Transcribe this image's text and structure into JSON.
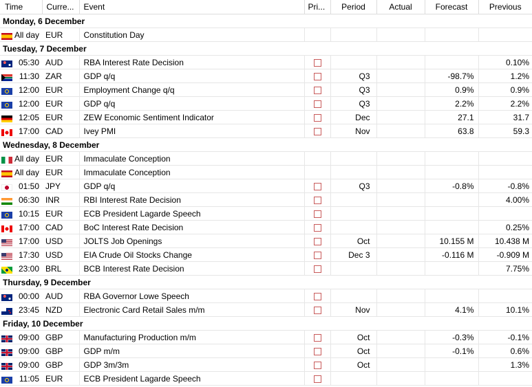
{
  "columns": {
    "time": "Time",
    "currency": "Curre...",
    "event": "Event",
    "priority": "Pri...",
    "period": "Period",
    "actual": "Actual",
    "forecast": "Forecast",
    "previous": "Previous"
  },
  "days": [
    {
      "label": "Monday, 6 December",
      "events": [
        {
          "flag": "es",
          "time": "All day",
          "currency": "EUR",
          "event": "Constitution Day",
          "priority": false,
          "period": "",
          "actual": "",
          "forecast": "",
          "previous": ""
        }
      ]
    },
    {
      "label": "Tuesday, 7 December",
      "events": [
        {
          "flag": "au",
          "time": "05:30",
          "currency": "AUD",
          "event": "RBA Interest Rate Decision",
          "priority": true,
          "period": "",
          "actual": "",
          "forecast": "",
          "previous": "0.10%"
        },
        {
          "flag": "za",
          "time": "11:30",
          "currency": "ZAR",
          "event": "GDP q/q",
          "priority": true,
          "period": "Q3",
          "actual": "",
          "forecast": "-98.7%",
          "previous": "1.2%"
        },
        {
          "flag": "eu",
          "time": "12:00",
          "currency": "EUR",
          "event": "Employment Change q/q",
          "priority": true,
          "period": "Q3",
          "actual": "",
          "forecast": "0.9%",
          "previous": "0.9%"
        },
        {
          "flag": "eu",
          "time": "12:00",
          "currency": "EUR",
          "event": "GDP q/q",
          "priority": true,
          "period": "Q3",
          "actual": "",
          "forecast": "2.2%",
          "previous": "2.2%"
        },
        {
          "flag": "de",
          "time": "12:05",
          "currency": "EUR",
          "event": "ZEW Economic Sentiment Indicator",
          "priority": true,
          "period": "Dec",
          "actual": "",
          "forecast": "27.1",
          "previous": "31.7"
        },
        {
          "flag": "ca",
          "time": "17:00",
          "currency": "CAD",
          "event": "Ivey PMI",
          "priority": true,
          "period": "Nov",
          "actual": "",
          "forecast": "63.8",
          "previous": "59.3"
        }
      ]
    },
    {
      "label": "Wednesday, 8 December",
      "events": [
        {
          "flag": "it",
          "time": "All day",
          "currency": "EUR",
          "event": "Immaculate Conception",
          "priority": false,
          "period": "",
          "actual": "",
          "forecast": "",
          "previous": ""
        },
        {
          "flag": "es",
          "time": "All day",
          "currency": "EUR",
          "event": "Immaculate Conception",
          "priority": false,
          "period": "",
          "actual": "",
          "forecast": "",
          "previous": ""
        },
        {
          "flag": "jp",
          "time": "01:50",
          "currency": "JPY",
          "event": "GDP q/q",
          "priority": true,
          "period": "Q3",
          "actual": "",
          "forecast": "-0.8%",
          "previous": "-0.8%"
        },
        {
          "flag": "in",
          "time": "06:30",
          "currency": "INR",
          "event": "RBI Interest Rate Decision",
          "priority": true,
          "period": "",
          "actual": "",
          "forecast": "",
          "previous": "4.00%"
        },
        {
          "flag": "eu",
          "time": "10:15",
          "currency": "EUR",
          "event": "ECB President Lagarde Speech",
          "priority": true,
          "period": "",
          "actual": "",
          "forecast": "",
          "previous": ""
        },
        {
          "flag": "ca",
          "time": "17:00",
          "currency": "CAD",
          "event": "BoC Interest Rate Decision",
          "priority": true,
          "period": "",
          "actual": "",
          "forecast": "",
          "previous": "0.25%"
        },
        {
          "flag": "us",
          "time": "17:00",
          "currency": "USD",
          "event": "JOLTS Job Openings",
          "priority": true,
          "period": "Oct",
          "actual": "",
          "forecast": "10.155 M",
          "previous": "10.438 M"
        },
        {
          "flag": "us",
          "time": "17:30",
          "currency": "USD",
          "event": "EIA Crude Oil Stocks Change",
          "priority": true,
          "period": "Dec 3",
          "actual": "",
          "forecast": "-0.116 M",
          "previous": "-0.909 M"
        },
        {
          "flag": "br",
          "time": "23:00",
          "currency": "BRL",
          "event": "BCB Interest Rate Decision",
          "priority": true,
          "period": "",
          "actual": "",
          "forecast": "",
          "previous": "7.75%"
        }
      ]
    },
    {
      "label": "Thursday, 9 December",
      "events": [
        {
          "flag": "au",
          "time": "00:00",
          "currency": "AUD",
          "event": "RBA Governor Lowe Speech",
          "priority": true,
          "period": "",
          "actual": "",
          "forecast": "",
          "previous": ""
        },
        {
          "flag": "nz",
          "time": "23:45",
          "currency": "NZD",
          "event": "Electronic Card Retail Sales m/m",
          "priority": true,
          "period": "Nov",
          "actual": "",
          "forecast": "4.1%",
          "previous": "10.1%"
        }
      ]
    },
    {
      "label": "Friday, 10 December",
      "events": [
        {
          "flag": "gb",
          "time": "09:00",
          "currency": "GBP",
          "event": "Manufacturing Production m/m",
          "priority": true,
          "period": "Oct",
          "actual": "",
          "forecast": "-0.3%",
          "previous": "-0.1%"
        },
        {
          "flag": "gb",
          "time": "09:00",
          "currency": "GBP",
          "event": "GDP m/m",
          "priority": true,
          "period": "Oct",
          "actual": "",
          "forecast": "-0.1%",
          "previous": "0.6%"
        },
        {
          "flag": "gb",
          "time": "09:00",
          "currency": "GBP",
          "event": "GDP 3m/3m",
          "priority": true,
          "period": "Oct",
          "actual": "",
          "forecast": "",
          "previous": "1.3%"
        },
        {
          "flag": "eu",
          "time": "11:05",
          "currency": "EUR",
          "event": "ECB President Lagarde Speech",
          "priority": true,
          "period": "",
          "actual": "",
          "forecast": "",
          "previous": ""
        }
      ]
    }
  ]
}
